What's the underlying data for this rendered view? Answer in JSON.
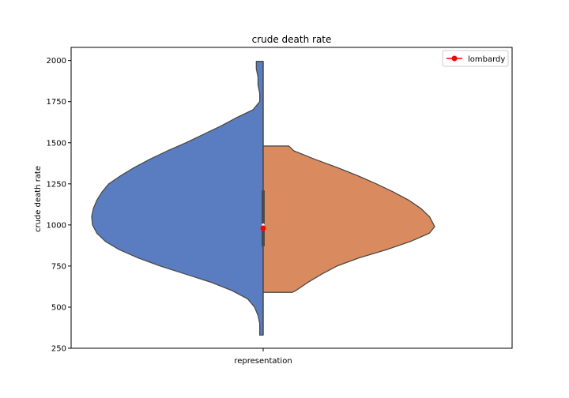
{
  "chart_data": {
    "type": "violin",
    "title": "crude death rate",
    "xlabel": "",
    "ylabel": "crude death rate",
    "categories": [
      "representation"
    ],
    "ylim": [
      250,
      2080
    ],
    "yticks": [
      250,
      500,
      750,
      1000,
      1250,
      1500,
      1750,
      2000
    ],
    "grid": false,
    "legend": {
      "position": "top-right",
      "entries": [
        {
          "label": "lombardy",
          "color": "#ff0000",
          "marker": "circle-line"
        }
      ]
    },
    "split_violin": {
      "left": {
        "color": "#5a7dc2",
        "range": [
          330,
          1995
        ],
        "profile": [
          [
            1995,
            0.04
          ],
          [
            1950,
            0.04
          ],
          [
            1900,
            0.03
          ],
          [
            1850,
            0.03
          ],
          [
            1800,
            0.02
          ],
          [
            1750,
            0.02
          ],
          [
            1700,
            0.06
          ],
          [
            1650,
            0.16
          ],
          [
            1600,
            0.25
          ],
          [
            1550,
            0.35
          ],
          [
            1500,
            0.45
          ],
          [
            1450,
            0.56
          ],
          [
            1400,
            0.66
          ],
          [
            1350,
            0.75
          ],
          [
            1300,
            0.83
          ],
          [
            1250,
            0.9
          ],
          [
            1200,
            0.94
          ],
          [
            1150,
            0.97
          ],
          [
            1100,
            0.99
          ],
          [
            1050,
            1.0
          ],
          [
            1000,
            0.995
          ],
          [
            950,
            0.97
          ],
          [
            900,
            0.92
          ],
          [
            850,
            0.84
          ],
          [
            800,
            0.73
          ],
          [
            750,
            0.6
          ],
          [
            700,
            0.45
          ],
          [
            650,
            0.3
          ],
          [
            600,
            0.18
          ],
          [
            550,
            0.09
          ],
          [
            500,
            0.05
          ],
          [
            450,
            0.03
          ],
          [
            400,
            0.02
          ],
          [
            350,
            0.02
          ],
          [
            330,
            0.02
          ]
        ]
      },
      "right": {
        "color": "#d98a5e",
        "range": [
          590,
          1480
        ],
        "profile": [
          [
            1480,
            0.15
          ],
          [
            1450,
            0.18
          ],
          [
            1400,
            0.3
          ],
          [
            1350,
            0.43
          ],
          [
            1300,
            0.55
          ],
          [
            1250,
            0.66
          ],
          [
            1200,
            0.76
          ],
          [
            1150,
            0.85
          ],
          [
            1100,
            0.92
          ],
          [
            1050,
            0.97
          ],
          [
            1000,
            0.995
          ],
          [
            990,
            1.0
          ],
          [
            950,
            0.97
          ],
          [
            900,
            0.86
          ],
          [
            850,
            0.72
          ],
          [
            800,
            0.56
          ],
          [
            750,
            0.43
          ],
          [
            700,
            0.34
          ],
          [
            650,
            0.26
          ],
          [
            600,
            0.19
          ],
          [
            590,
            0.17
          ]
        ]
      },
      "box": {
        "q1": 870,
        "q3": 1210,
        "median": 1000
      }
    },
    "point": {
      "label": "lombardy",
      "value": 980,
      "color": "#ff0000"
    }
  }
}
